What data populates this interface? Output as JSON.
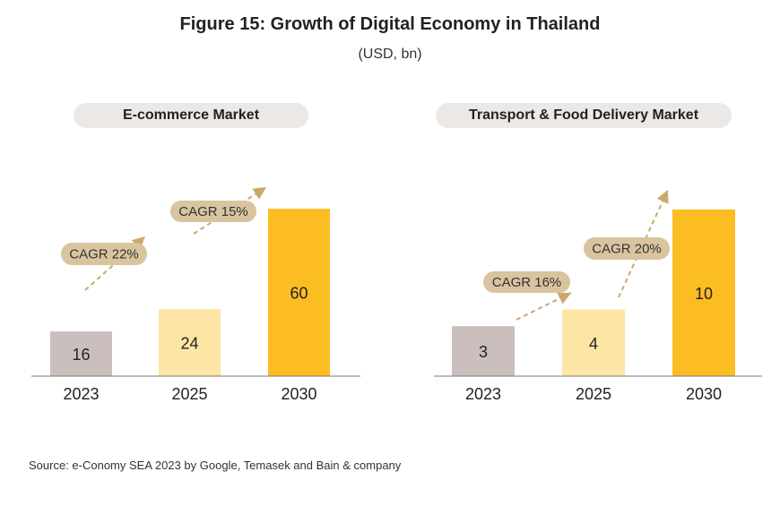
{
  "figure": {
    "title": "Figure 15: Growth of Digital Economy in Thailand",
    "subtitle": "(USD, bn)",
    "source": "Source: e-Conomy SEA 2023 by Google, Temasek and Bain & company"
  },
  "colors": {
    "bar_2023": "#cbbfbd",
    "bar_2025": "#fde5a6",
    "bar_2030": "#fbbd22",
    "cagr_box": "#d9c4a0",
    "arrow": "#c9a96b",
    "pill": "#ebe8e6"
  },
  "chart_data": [
    {
      "type": "bar",
      "title": "E-commerce Market",
      "categories": [
        "2023",
        "2025",
        "2030"
      ],
      "values": [
        16,
        24,
        60
      ],
      "data_labels": [
        "16",
        "24",
        "60"
      ],
      "ylim": [
        0,
        70
      ],
      "annotations": [
        {
          "text": "CAGR 22%",
          "from": "2023",
          "to": "2025"
        },
        {
          "text": "CAGR 15%",
          "from": "2025",
          "to": "2030"
        }
      ],
      "grid": false
    },
    {
      "type": "bar",
      "title": "Transport & Food Delivery Market",
      "categories": [
        "2023",
        "2025",
        "2030"
      ],
      "values": [
        3,
        4,
        10
      ],
      "data_labels": [
        "3",
        "4",
        "10"
      ],
      "ylim": [
        0,
        11.5
      ],
      "annotations": [
        {
          "text": "CAGR 16%",
          "from": "2023",
          "to": "2025"
        },
        {
          "text": "CAGR 20%",
          "from": "2025",
          "to": "2030"
        }
      ],
      "grid": false
    }
  ]
}
